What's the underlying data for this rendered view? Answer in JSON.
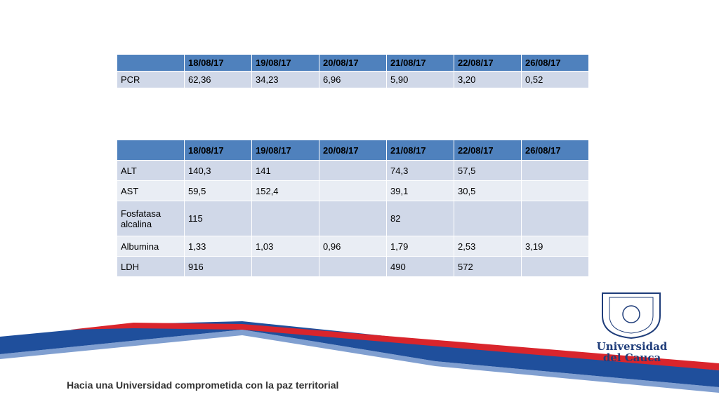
{
  "table1": {
    "header": [
      "18/08/17",
      "19/08/17",
      "20/08/17",
      "21/08/17",
      "22/08/17",
      "26/08/17"
    ],
    "rows": [
      [
        "PCR",
        "62,36",
        "34,23",
        "6,96",
        "5,90",
        "3,20",
        "0,52"
      ]
    ]
  },
  "table2": {
    "header": [
      "18/08/17",
      "19/08/17",
      "20/08/17",
      "21/08/17",
      "22/08/17",
      "26/08/17"
    ],
    "rows": [
      [
        "ALT",
        "140,3",
        "141",
        null,
        "74,3",
        "57,5",
        null
      ],
      [
        "AST",
        "59,5",
        "152,4",
        null,
        "39,1",
        "30,5",
        null
      ],
      [
        "Fosfatasa alcalina",
        "115",
        null,
        null,
        "82",
        null,
        null
      ],
      [
        "Albumina",
        "1,33",
        "1,03",
        "0,96",
        "1,79",
        "2,53",
        "3,19"
      ],
      [
        "LDH",
        "916",
        null,
        null,
        "490",
        "572",
        null
      ]
    ]
  },
  "logo": {
    "line1": "Universidad",
    "line2": "del Cauca"
  },
  "footer": "Hacia una Universidad comprometida con la paz territorial"
}
